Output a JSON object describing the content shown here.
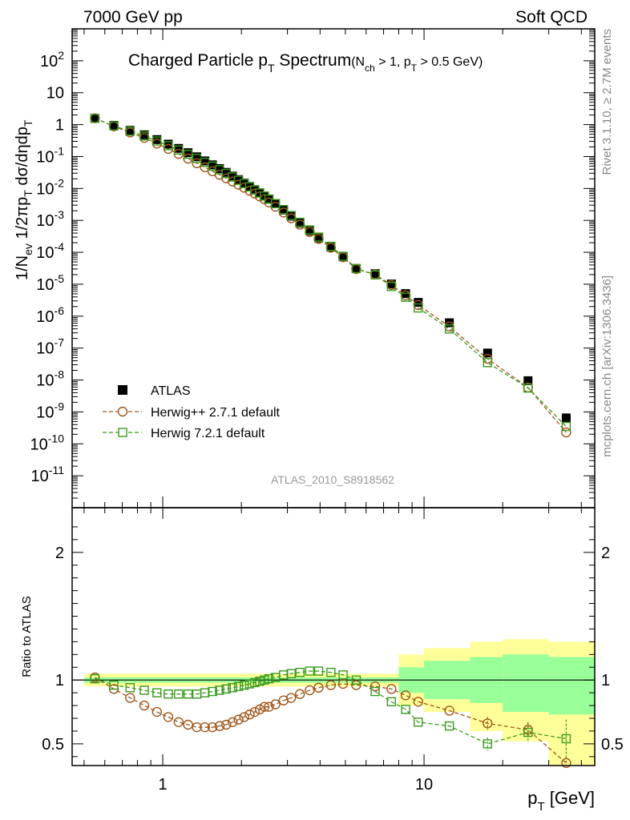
{
  "header": {
    "left": "7000 GeV pp",
    "right": "Soft QCD"
  },
  "plot_title": {
    "main": "Charged Particle p",
    "main_sub": "T",
    "main_rest": " Spectrum",
    "cond": "(N",
    "cond_sub1": "ch",
    "cond_mid": " > 1, p",
    "cond_sub2": "T",
    "cond_rest": " > 0.5 GeV)"
  },
  "ylabel_top": {
    "p1": "1/N",
    "s1": "ev",
    "p2": " 1/2πp",
    "s2": "T",
    "p3": " dσ/dηdp",
    "s3": "T"
  },
  "ylabel_ratio": "Ratio to ATLAS",
  "xlabel": {
    "p": "p",
    "sub": "T",
    "rest": "  [GeV]"
  },
  "side_text": {
    "rivet": "Rivet 3.1.10, ≥ 2.7M events",
    "mcplots": "mcplots.cern.ch [arXiv:1306.3436]"
  },
  "analysis_id": "ATLAS_2010_S8918562",
  "colors": {
    "atlas": "#000000",
    "herwigpp": "#a0561a",
    "herwig7": "#3a9a1c",
    "band_yellow": "#ffff99",
    "band_green": "#99ff99"
  },
  "chart_data": {
    "type": "scatter",
    "x_scale": "log",
    "y_scale_top": "log",
    "xlim": [
      0.45,
      45
    ],
    "ylim_top": [
      1e-12,
      1000
    ],
    "ylim_ratio": [
      0.33,
      2.35
    ],
    "x_ticks": [
      {
        "value": 1,
        "label": "1"
      },
      {
        "value": 10,
        "label": "10"
      }
    ],
    "y_ticks_top": [
      {
        "value": 1e-11,
        "b": "10",
        "e": "-11"
      },
      {
        "value": 1e-10,
        "b": "10",
        "e": "-10"
      },
      {
        "value": 1e-09,
        "b": "10",
        "e": "-9"
      },
      {
        "value": 1e-08,
        "b": "10",
        "e": "-8"
      },
      {
        "value": 1e-07,
        "b": "10",
        "e": "-7"
      },
      {
        "value": 1e-06,
        "b": "10",
        "e": "-6"
      },
      {
        "value": 1e-05,
        "b": "10",
        "e": "-5"
      },
      {
        "value": 0.0001,
        "b": "10",
        "e": "-4"
      },
      {
        "value": 0.001,
        "b": "10",
        "e": "-3"
      },
      {
        "value": 0.01,
        "b": "10",
        "e": "-2"
      },
      {
        "value": 0.1,
        "b": "10",
        "e": "-1"
      },
      {
        "value": 1,
        "b": "1",
        "e": ""
      },
      {
        "value": 10,
        "b": "10",
        "e": ""
      },
      {
        "value": 100,
        "b": "10",
        "e": "2"
      }
    ],
    "y_ticks_ratio": [
      {
        "value": 0.5,
        "label": "0.5"
      },
      {
        "value": 1,
        "label": "1"
      },
      {
        "value": 2,
        "label": "2"
      }
    ],
    "legend": [
      {
        "key": "atlas",
        "label": "ATLAS"
      },
      {
        "key": "herwigpp",
        "label": "Herwig++ 2.7.1 default"
      },
      {
        "key": "herwig7",
        "label": "Herwig 7.2.1 default"
      }
    ],
    "x": [
      0.55,
      0.65,
      0.75,
      0.85,
      0.95,
      1.05,
      1.15,
      1.25,
      1.35,
      1.45,
      1.55,
      1.65,
      1.75,
      1.85,
      1.95,
      2.05,
      2.15,
      2.25,
      2.35,
      2.45,
      2.55,
      2.7,
      2.9,
      3.1,
      3.35,
      3.65,
      3.95,
      4.4,
      4.9,
      5.5,
      6.5,
      7.5,
      8.5,
      9.5,
      12.5,
      17.5,
      25,
      35
    ],
    "atlas": [
      1.55,
      0.95,
      0.66,
      0.48,
      0.34,
      0.245,
      0.18,
      0.132,
      0.098,
      0.073,
      0.055,
      0.042,
      0.032,
      0.0245,
      0.019,
      0.0148,
      0.0116,
      0.0092,
      0.0073,
      0.0058,
      0.0046,
      0.0033,
      0.0021,
      0.00135,
      0.00082,
      0.00047,
      0.00028,
      0.000145,
      7.2e-05,
      3.1e-05,
      2.15e-05,
      1.02e-05,
      5.1e-06,
      2.7e-06,
      6.2e-07,
      7e-08,
      9.5e-09,
      6.5e-10
    ],
    "herwigpp_ratio": [
      1.02,
      0.93,
      0.86,
      0.8,
      0.75,
      0.71,
      0.67,
      0.65,
      0.63,
      0.63,
      0.63,
      0.64,
      0.65,
      0.67,
      0.69,
      0.71,
      0.73,
      0.75,
      0.77,
      0.79,
      0.79,
      0.81,
      0.84,
      0.86,
      0.89,
      0.92,
      0.94,
      0.96,
      0.97,
      0.96,
      0.95,
      0.93,
      0.88,
      0.83,
      0.76,
      0.66,
      0.61,
      0.35
    ],
    "herwig7_ratio": [
      1.01,
      0.96,
      0.94,
      0.92,
      0.9,
      0.89,
      0.89,
      0.89,
      0.89,
      0.9,
      0.91,
      0.92,
      0.93,
      0.94,
      0.95,
      0.96,
      0.97,
      0.98,
      0.99,
      1.0,
      1.01,
      1.02,
      1.04,
      1.05,
      1.06,
      1.07,
      1.07,
      1.06,
      1.04,
      1.0,
      0.91,
      0.83,
      0.77,
      0.67,
      0.64,
      0.5,
      0.59,
      0.54
    ],
    "herwigpp_err": [
      0,
      0,
      0,
      0,
      0,
      0,
      0,
      0,
      0,
      0,
      0,
      0,
      0,
      0,
      0,
      0,
      0,
      0,
      0,
      0,
      0,
      0,
      0,
      0,
      0,
      0,
      0,
      0,
      0,
      0,
      0,
      0,
      0,
      0,
      0,
      0.05,
      0.06,
      0.05
    ],
    "herwig7_err": [
      0,
      0,
      0,
      0,
      0,
      0,
      0,
      0,
      0,
      0,
      0,
      0,
      0,
      0,
      0,
      0,
      0,
      0,
      0,
      0,
      0,
      0,
      0,
      0,
      0,
      0,
      0,
      0,
      0,
      0,
      0,
      0,
      0,
      0,
      0,
      0.05,
      0.08,
      0.15
    ],
    "band_bins": [
      {
        "x0": 0.5,
        "x1": 8.0,
        "y_lo": 0.95,
        "y_hi": 1.05,
        "g_lo": 0.98,
        "g_hi": 1.02
      },
      {
        "x0": 8.0,
        "x1": 10.0,
        "y_lo": 0.8,
        "y_hi": 1.2,
        "g_lo": 0.9,
        "g_hi": 1.1
      },
      {
        "x0": 10.0,
        "x1": 15.0,
        "y_lo": 0.75,
        "y_hi": 1.25,
        "g_lo": 0.85,
        "g_hi": 1.15
      },
      {
        "x0": 15.0,
        "x1": 20.0,
        "y_lo": 0.6,
        "y_hi": 1.3,
        "g_lo": 0.82,
        "g_hi": 1.18
      },
      {
        "x0": 20.0,
        "x1": 30.0,
        "y_lo": 0.52,
        "y_hi": 1.32,
        "g_lo": 0.75,
        "g_hi": 1.2
      },
      {
        "x0": 30.0,
        "x1": 45.0,
        "y_lo": 0.33,
        "y_hi": 1.3,
        "g_lo": 0.73,
        "g_hi": 1.18
      }
    ]
  }
}
